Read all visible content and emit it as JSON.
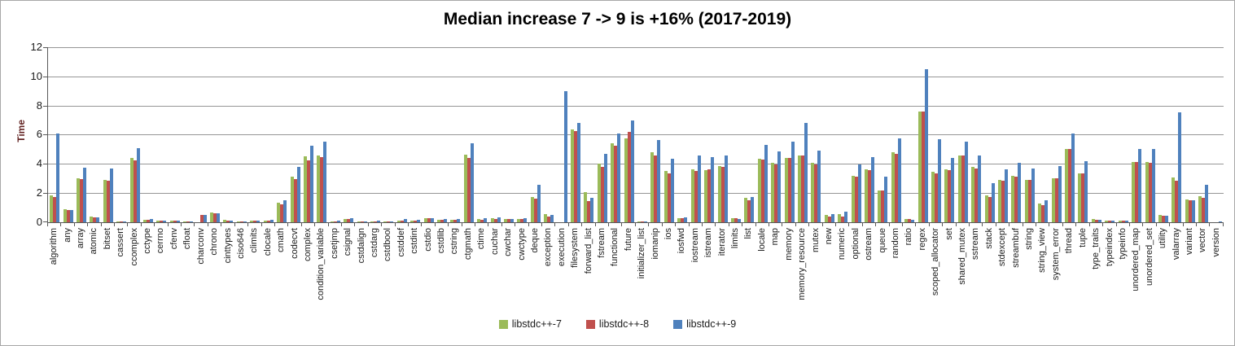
{
  "chart_data": {
    "type": "bar",
    "title": "Median increase 7 -> 9 is +16% (2017-2019)",
    "ylabel": "Time",
    "xlabel": "",
    "ylim": [
      0,
      12
    ],
    "yticks": [
      0,
      2,
      4,
      6,
      8,
      10,
      12
    ],
    "grid": true,
    "legend_position": "bottom-center",
    "categories": [
      "algorithm",
      "any",
      "array",
      "atomic",
      "bitset",
      "cassert",
      "ccomplex",
      "cctype",
      "cerrno",
      "cfenv",
      "cfloat",
      "charconv",
      "chrono",
      "cinttypes",
      "ciso646",
      "climits",
      "clocale",
      "cmath",
      "codecvt",
      "complex",
      "condition_variable",
      "csetjmp",
      "csignal",
      "cstdalign",
      "cstdarg",
      "cstdbool",
      "cstddef",
      "cstdint",
      "cstdio",
      "cstdlib",
      "cstring",
      "ctgmath",
      "ctime",
      "cuchar",
      "cwchar",
      "cwctype",
      "deque",
      "exception",
      "execution",
      "filesystem",
      "forward_list",
      "fstream",
      "functional",
      "future",
      "initializer_list",
      "iomanip",
      "ios",
      "iosfwd",
      "iostream",
      "istream",
      "iterator",
      "limits",
      "list",
      "locale",
      "map",
      "memory",
      "memory_resource",
      "mutex",
      "new",
      "numeric",
      "optional",
      "ostream",
      "queue",
      "random",
      "ratio",
      "regex",
      "scoped_allocator",
      "set",
      "shared_mutex",
      "sstream",
      "stack",
      "stdexcept",
      "streambuf",
      "string",
      "string_view",
      "system_error",
      "thread",
      "tuple",
      "type_traits",
      "typeindex",
      "typeinfo",
      "unordered_map",
      "unordered_set",
      "utility",
      "valarray",
      "variant",
      "vector",
      "version"
    ],
    "series": [
      {
        "name": "libstdc++-7",
        "color": "#9BBB59",
        "values": [
          1.85,
          0.9,
          3.0,
          0.4,
          2.9,
          0.06,
          4.4,
          0.16,
          0.1,
          0.11,
          0.06,
          0,
          0.65,
          0.14,
          0.06,
          0.1,
          0.1,
          1.35,
          3.1,
          4.5,
          4.6,
          0.06,
          0.25,
          0.06,
          0.07,
          0.06,
          0.13,
          0.11,
          0.26,
          0.19,
          0.17,
          4.65,
          0.24,
          0.28,
          0.22,
          0.24,
          1.75,
          0.56,
          0,
          6.35,
          2.05,
          4.0,
          5.4,
          5.75,
          0.05,
          4.8,
          3.5,
          0.3,
          3.65,
          3.55,
          3.85,
          0.3,
          1.65,
          4.35,
          4.05,
          4.4,
          4.6,
          4.1,
          0.5,
          0.55,
          3.2,
          3.65,
          2.15,
          4.8,
          0.25,
          7.6,
          3.45,
          3.65,
          4.55,
          3.8,
          1.85,
          2.9,
          3.2,
          2.9,
          1.3,
          3.0,
          5.0,
          3.35,
          0.25,
          0.1,
          0.1,
          4.15,
          4.15,
          0.5,
          3.05,
          1.55,
          1.8,
          0
        ]
      },
      {
        "name": "libstdc++-8",
        "color": "#C0504D",
        "values": [
          1.75,
          0.82,
          2.95,
          0.35,
          2.85,
          0.06,
          4.25,
          0.16,
          0.1,
          0.11,
          0.06,
          0.5,
          0.62,
          0.12,
          0.06,
          0.1,
          0.1,
          1.25,
          2.95,
          4.25,
          4.45,
          0.06,
          0.2,
          0.06,
          0.07,
          0.06,
          0.13,
          0.11,
          0.26,
          0.19,
          0.17,
          4.4,
          0.17,
          0.24,
          0.22,
          0.22,
          1.6,
          0.41,
          0,
          6.25,
          1.45,
          3.8,
          5.25,
          6.2,
          0.05,
          4.55,
          3.35,
          0.26,
          3.5,
          3.6,
          3.8,
          0.26,
          1.5,
          4.3,
          3.95,
          4.4,
          4.6,
          3.95,
          0.4,
          0.4,
          3.15,
          3.55,
          2.15,
          4.7,
          0.2,
          7.6,
          3.35,
          3.55,
          4.6,
          3.7,
          1.75,
          2.85,
          3.15,
          2.9,
          1.2,
          3.0,
          5.0,
          3.35,
          0.15,
          0.1,
          0.1,
          4.15,
          4.1,
          0.45,
          2.85,
          1.5,
          1.65,
          0
        ]
      },
      {
        "name": "libstdc++-9",
        "color": "#4F81BD",
        "values": [
          6.1,
          0.85,
          3.75,
          0.35,
          3.7,
          0.06,
          5.1,
          0.2,
          0.1,
          0.12,
          0.06,
          0.5,
          0.62,
          0.12,
          0.06,
          0.1,
          0.14,
          1.5,
          3.8,
          5.25,
          5.5,
          0.13,
          0.3,
          0.08,
          0.09,
          0.06,
          0.2,
          0.17,
          0.3,
          0.21,
          0.22,
          5.4,
          0.28,
          0.32,
          0.24,
          0.26,
          2.55,
          0.49,
          9.0,
          6.8,
          1.65,
          4.7,
          6.1,
          6.95,
          0.07,
          5.65,
          4.35,
          0.32,
          4.6,
          4.45,
          4.6,
          0.2,
          1.72,
          5.3,
          4.85,
          5.5,
          6.8,
          4.9,
          0.55,
          0.7,
          3.95,
          4.45,
          3.15,
          5.75,
          0.15,
          10.5,
          5.7,
          4.4,
          5.55,
          4.6,
          2.7,
          3.65,
          4.05,
          3.7,
          1.5,
          3.85,
          6.1,
          4.2,
          0.15,
          0.1,
          0.1,
          5.0,
          5.05,
          0.45,
          7.55,
          1.5,
          2.55,
          0.05
        ]
      }
    ]
  }
}
